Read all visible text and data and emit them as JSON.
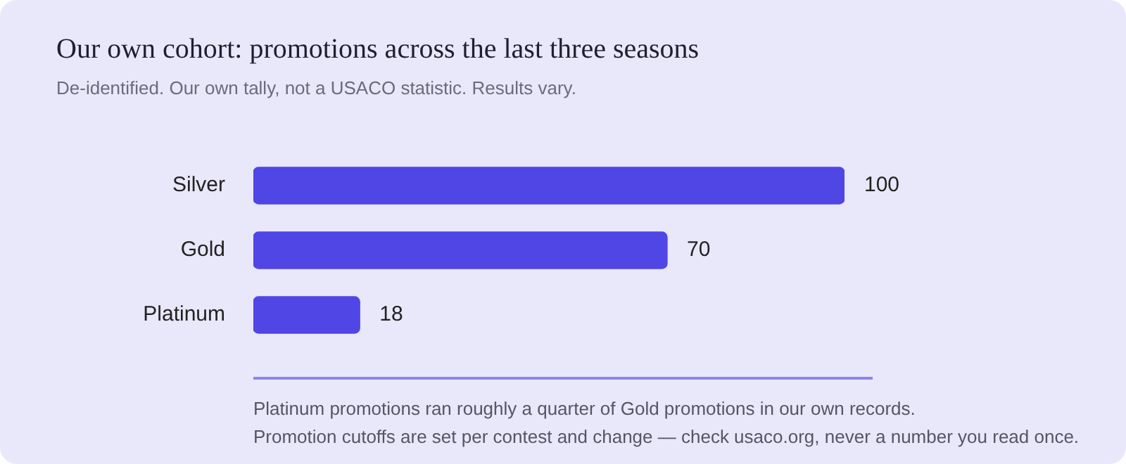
{
  "chart_data": {
    "type": "bar",
    "orientation": "horizontal",
    "title": "Our own cohort: promotions across the last three seasons",
    "subtitle": "De-identified. Our own tally, not a USACO statistic. Results vary.",
    "categories": [
      "Silver",
      "Gold",
      "Platinum"
    ],
    "values": [
      100,
      70,
      18
    ],
    "color": "#4f46e5",
    "data_labels": true,
    "annotations": [
      "Platinum promotions ran roughly a quarter of Gold promotions in our own records.",
      "Promotion cutoffs are set per contest and change — check usaco.org, never a number you read once."
    ]
  }
}
